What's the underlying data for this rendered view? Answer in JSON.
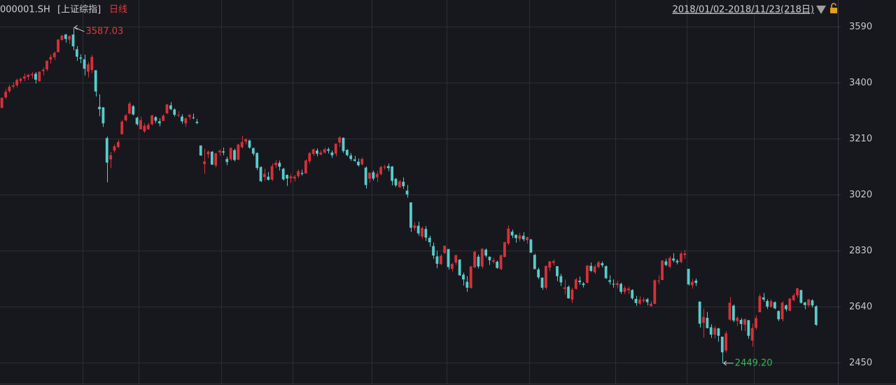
{
  "chart_data": {
    "type": "candlestick",
    "symbol": "000001.SH",
    "name": "[上证综指]",
    "period": "日线",
    "range": "2018/01/02-2018/11/23(218日)",
    "up_color": "#d8303a",
    "down_color": "#58cccc",
    "grid": true,
    "ylim": [
      2380,
      3680
    ],
    "yticks": [
      2450,
      2640,
      2830,
      3020,
      3210,
      3400,
      3590
    ],
    "xticks": [
      22,
      37,
      59,
      78,
      99,
      119,
      141,
      164,
      183,
      201
    ],
    "max_label": {
      "text": "3587.03",
      "color": "#e0393e"
    },
    "min_label": {
      "text": "2449.20",
      "color": "#35b858"
    },
    "open": [
      3314,
      3350,
      3371,
      3386,
      3391,
      3406,
      3414,
      3419,
      3425,
      3430,
      3405,
      3439,
      3445,
      3478,
      3486,
      3503,
      3545,
      3563,
      3546,
      3563,
      3513,
      3485,
      3479,
      3437,
      3443,
      3442,
      3318,
      3316,
      3212,
      3140,
      3170,
      3182,
      3225,
      3272,
      3295,
      3320,
      3281,
      3242,
      3235,
      3242,
      3259,
      3283,
      3269,
      3270,
      3296,
      3323,
      3309,
      3290,
      3285,
      3262,
      3284,
      3282,
      3267,
      3187,
      3124,
      3157,
      3166,
      3119,
      3164,
      3167,
      3141,
      3140,
      3171,
      3139,
      3181,
      3200,
      3204,
      3178,
      3162,
      3114,
      3080,
      3081,
      3071,
      3120,
      3128,
      3108,
      3087,
      3076,
      3075,
      3083,
      3094,
      3092,
      3134,
      3158,
      3170,
      3156,
      3163,
      3174,
      3163,
      3159,
      3197,
      3213,
      3172,
      3153,
      3140,
      3132,
      3123,
      3112,
      3074,
      3096,
      3079,
      3090,
      3113,
      3117,
      3116,
      3074,
      3046,
      3064,
      3034,
      2994,
      2907,
      2915,
      2878,
      2904,
      2874,
      2846,
      2811,
      2785,
      2823,
      2836,
      2769,
      2790,
      2800,
      2749,
      2725,
      2704,
      2774,
      2810,
      2777,
      2834,
      2810,
      2793,
      2793,
      2768,
      2809,
      2855,
      2895,
      2884,
      2870,
      2881,
      2866,
      2868,
      2816,
      2767,
      2739,
      2705,
      2773,
      2789,
      2778,
      2744,
      2701,
      2708,
      2665,
      2701,
      2729,
      2719,
      2722,
      2779,
      2757,
      2775,
      2788,
      2778,
      2730,
      2718,
      2714,
      2718,
      2691,
      2696,
      2697,
      2667,
      2651,
      2660,
      2666,
      2643,
      2650,
      2727,
      2731,
      2794,
      2776,
      2804,
      2796,
      2792,
      2816,
      2769,
      2713,
      2729,
      2658,
      2586,
      2603,
      2571,
      2546,
      2567,
      2539,
      2492,
      2597,
      2644,
      2592,
      2596,
      2580,
      2595,
      2526,
      2569,
      2622,
      2672,
      2660,
      2640,
      2656,
      2626,
      2598,
      2645,
      2627,
      2663,
      2679,
      2697,
      2655,
      2645,
      2662,
      2642
    ],
    "high": [
      3349,
      3379,
      3392,
      3402,
      3414,
      3417,
      3431,
      3430,
      3436,
      3436,
      3438,
      3451,
      3475,
      3496,
      3505,
      3547,
      3562,
      3565,
      3559,
      3587.03,
      3524,
      3496,
      3495,
      3470,
      3494,
      3442,
      3360,
      3317,
      3217,
      3165,
      3190,
      3206,
      3273,
      3294,
      3335,
      3324,
      3285,
      3284,
      3262,
      3264,
      3291,
      3286,
      3279,
      3292,
      3328,
      3334,
      3313,
      3304,
      3293,
      3282,
      3294,
      3295,
      3277,
      3187,
      3176,
      3170,
      3168,
      3162,
      3174,
      3180,
      3149,
      3180,
      3176,
      3193,
      3220,
      3211,
      3206,
      3180,
      3162,
      3116,
      3108,
      3097,
      3126,
      3138,
      3136,
      3111,
      3089,
      3090,
      3087,
      3106,
      3105,
      3140,
      3165,
      3177,
      3177,
      3171,
      3180,
      3180,
      3170,
      3193,
      3219,
      3214,
      3174,
      3161,
      3152,
      3143,
      3146,
      3116,
      3095,
      3102,
      3101,
      3118,
      3121,
      3126,
      3117,
      3077,
      3071,
      3079,
      3053,
      2994,
      2927,
      2929,
      2912,
      2914,
      2881,
      2858,
      2830,
      2818,
      2848,
      2836,
      2789,
      2817,
      2802,
      2756,
      2744,
      2778,
      2830,
      2817,
      2838,
      2838,
      2811,
      2806,
      2797,
      2817,
      2861,
      2916,
      2902,
      2886,
      2891,
      2893,
      2878,
      2871,
      2820,
      2773,
      2740,
      2780,
      2795,
      2801,
      2778,
      2752,
      2733,
      2713,
      2705,
      2738,
      2743,
      2724,
      2782,
      2790,
      2783,
      2796,
      2794,
      2780,
      2747,
      2733,
      2729,
      2722,
      2711,
      2709,
      2700,
      2677,
      2676,
      2672,
      2670,
      2660,
      2733,
      2747,
      2798,
      2803,
      2812,
      2822,
      2802,
      2827,
      2833,
      2769,
      2734,
      2736,
      2658,
      2634,
      2623,
      2581,
      2575,
      2569,
      2539,
      2558,
      2673,
      2648,
      2609,
      2602,
      2601,
      2595,
      2583,
      2611,
      2684,
      2687,
      2666,
      2666,
      2658,
      2628,
      2659,
      2648,
      2670,
      2686,
      2704,
      2698,
      2657,
      2667,
      2666,
      2645
    ],
    "low": [
      3314,
      3345,
      3365,
      3380,
      3384,
      3398,
      3405,
      3409,
      3414,
      3397,
      3403,
      3425,
      3439,
      3464,
      3477,
      3503,
      3542,
      3536,
      3531,
      3510,
      3474,
      3466,
      3424,
      3417,
      3433,
      3353,
      3286,
      3250,
      3062,
      3110,
      3163,
      3177,
      3225,
      3268,
      3292,
      3289,
      3254,
      3241,
      3230,
      3240,
      3255,
      3263,
      3252,
      3270,
      3294,
      3306,
      3285,
      3283,
      3261,
      3250,
      3275,
      3276,
      3259,
      3152,
      3091,
      3144,
      3122,
      3112,
      3152,
      3154,
      3120,
      3135,
      3133,
      3137,
      3177,
      3190,
      3176,
      3152,
      3104,
      3063,
      3067,
      3068,
      3067,
      3110,
      3102,
      3068,
      3050,
      3060,
      3065,
      3077,
      3085,
      3092,
      3126,
      3151,
      3150,
      3154,
      3159,
      3160,
      3145,
      3150,
      3182,
      3162,
      3150,
      3135,
      3131,
      3115,
      3119,
      3041,
      3061,
      3068,
      3063,
      3086,
      3105,
      3100,
      3052,
      3046,
      3042,
      3040,
      3010,
      2894,
      2898,
      2881,
      2870,
      2864,
      2844,
      2803,
      2771,
      2782,
      2819,
      2766,
      2760,
      2782,
      2745,
      2712,
      2691,
      2702,
      2771,
      2770,
      2770,
      2808,
      2782,
      2787,
      2769,
      2765,
      2808,
      2849,
      2873,
      2858,
      2862,
      2862,
      2854,
      2823,
      2768,
      2734,
      2698,
      2699,
      2761,
      2780,
      2727,
      2711,
      2682,
      2668,
      2653,
      2699,
      2715,
      2706,
      2719,
      2758,
      2752,
      2771,
      2774,
      2735,
      2716,
      2705,
      2702,
      2684,
      2683,
      2683,
      2664,
      2644,
      2647,
      2654,
      2645,
      2640,
      2650,
      2717,
      2731,
      2778,
      2771,
      2791,
      2784,
      2788,
      2803,
      2712,
      2702,
      2711,
      2570,
      2536,
      2567,
      2535,
      2533,
      2522,
      2449.2,
      2485,
      2593,
      2588,
      2575,
      2560,
      2558,
      2532,
      2505,
      2563,
      2621,
      2658,
      2633,
      2638,
      2632,
      2592,
      2591,
      2625,
      2625,
      2658,
      2671,
      2651,
      2632,
      2640,
      2638,
      2576
    ],
    "close": [
      3349,
      3369,
      3386,
      3391,
      3409,
      3413,
      3421,
      3426,
      3429,
      3410,
      3437,
      3444,
      3474,
      3487,
      3501,
      3546,
      3559,
      3548,
      3558,
      3523,
      3488,
      3481,
      3447,
      3462,
      3487,
      3370,
      3310,
      3262,
      3129,
      3154,
      3184,
      3199,
      3268,
      3289,
      3329,
      3292,
      3259,
      3273,
      3254,
      3257,
      3289,
      3271,
      3262,
      3288,
      3326,
      3310,
      3291,
      3291,
      3269,
      3279,
      3290,
      3281,
      3263,
      3153,
      3133,
      3166,
      3122,
      3160,
      3169,
      3163,
      3131,
      3179,
      3138,
      3190,
      3199,
      3208,
      3180,
      3159,
      3111,
      3066,
      3091,
      3071,
      3117,
      3128,
      3115,
      3072,
      3075,
      3082,
      3081,
      3100,
      3091,
      3136,
      3161,
      3174,
      3159,
      3163,
      3174,
      3169,
      3154,
      3193,
      3214,
      3168,
      3154,
      3141,
      3135,
      3120,
      3141,
      3053,
      3095,
      3075,
      3091,
      3114,
      3115,
      3110,
      3067,
      3052,
      3065,
      3049,
      3021,
      2908,
      2916,
      2889,
      2907,
      2875,
      2859,
      2814,
      2786,
      2813,
      2847,
      2775,
      2786,
      2815,
      2747,
      2733,
      2705,
      2777,
      2827,
      2777,
      2837,
      2814,
      2798,
      2798,
      2772,
      2815,
      2859,
      2905,
      2882,
      2873,
      2882,
      2869,
      2876,
      2824,
      2768,
      2740,
      2705,
      2779,
      2794,
      2795,
      2744,
      2723,
      2706,
      2669,
      2698,
      2733,
      2724,
      2714,
      2780,
      2762,
      2777,
      2791,
      2781,
      2737,
      2725,
      2716,
      2720,
      2691,
      2704,
      2702,
      2669,
      2653,
      2665,
      2664,
      2656,
      2651,
      2730,
      2729,
      2797,
      2782,
      2806,
      2797,
      2791,
      2821,
      2821,
      2716,
      2725,
      2721,
      2583,
      2606,
      2568,
      2546,
      2568,
      2542,
      2486,
      2550,
      2654,
      2594,
      2603,
      2582,
      2598,
      2542,
      2568,
      2602,
      2676,
      2665,
      2641,
      2659,
      2635,
      2598,
      2654,
      2632,
      2668,
      2679,
      2703,
      2654,
      2646,
      2665,
      2645,
      2579
    ]
  }
}
